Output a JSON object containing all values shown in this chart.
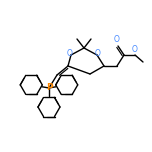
{
  "bg_color": "#ffffff",
  "atom_color_O": "#4488ff",
  "atom_color_P": "#ff8800",
  "line_color": "#000000",
  "line_width": 1.0,
  "figsize": [
    1.52,
    1.52
  ],
  "dpi": 100,
  "xlim": [
    0,
    152
  ],
  "ylim": [
    0,
    152
  ]
}
